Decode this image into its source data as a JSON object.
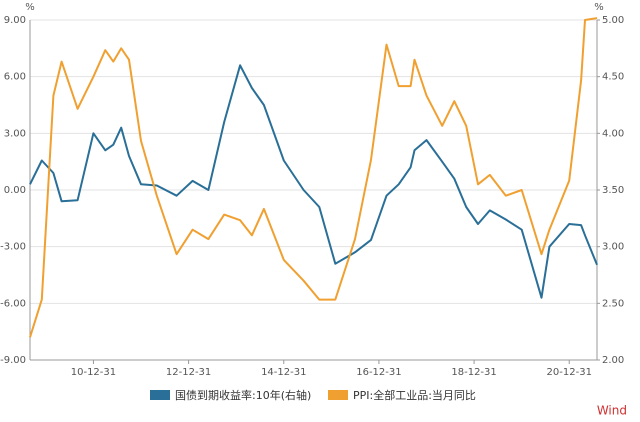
{
  "chart_data": {
    "type": "line",
    "ylabel": "%",
    "y2label": "%",
    "xlim": [
      "09-08-31",
      "21-07-31"
    ],
    "xticks": [
      "10-12-31",
      "12-12-31",
      "14-12-31",
      "16-12-31",
      "18-12-31",
      "20-12-31"
    ],
    "ylim": [
      -9,
      9
    ],
    "yticks": [
      {
        "value": -9,
        "label": "-9.00"
      },
      {
        "value": -6,
        "label": "-6.00"
      },
      {
        "value": -3,
        "label": "-3.00"
      },
      {
        "value": 0,
        "label": "0.00"
      },
      {
        "value": 3,
        "label": "3.00"
      },
      {
        "value": 6,
        "label": "6.00"
      },
      {
        "value": 9,
        "label": "9.00"
      }
    ],
    "y2lim": [
      2,
      5
    ],
    "y2ticks": [
      {
        "value": 2,
        "label": "2.00"
      },
      {
        "value": 2.5,
        "label": "2.50"
      },
      {
        "value": 3,
        "label": "3.00"
      },
      {
        "value": 3.5,
        "label": "3.50"
      },
      {
        "value": 4,
        "label": "4.00"
      },
      {
        "value": 4.5,
        "label": "4.50"
      },
      {
        "value": 5,
        "label": "5.00"
      }
    ],
    "grid": true,
    "x": [
      "09-08-31",
      "09-11-30",
      "10-02-28",
      "10-04-30",
      "10-08-31",
      "10-12-31",
      "11-03-31",
      "11-05-31",
      "11-07-31",
      "11-09-30",
      "11-12-31",
      "12-04-30",
      "12-09-30",
      "13-01-31",
      "13-05-31",
      "13-09-30",
      "14-01-31",
      "14-04-30",
      "14-07-31",
      "14-12-31",
      "15-05-31",
      "15-09-30",
      "16-01-31",
      "16-06-30",
      "16-10-31",
      "17-02-28",
      "17-05-31",
      "17-08-31",
      "17-09-30",
      "17-12-31",
      "18-04-30",
      "18-07-31",
      "18-10-31",
      "19-01-31",
      "19-04-30",
      "19-08-31",
      "19-12-31",
      "20-05-31",
      "20-07-31",
      "20-12-31",
      "21-03-31",
      "21-04-30",
      "21-07-31"
    ],
    "series": [
      {
        "name": "国债到期收益率:10年(右轴)",
        "color": "#2a6f97",
        "axis": "y2",
        "values": [
          3.55,
          3.76,
          3.65,
          3.4,
          3.41,
          4.0,
          3.85,
          3.9,
          4.05,
          3.8,
          3.55,
          3.54,
          3.45,
          3.58,
          3.5,
          4.1,
          4.6,
          4.4,
          4.25,
          3.76,
          3.5,
          3.35,
          2.85,
          2.95,
          3.06,
          3.45,
          3.55,
          3.7,
          3.85,
          3.94,
          3.75,
          3.6,
          3.35,
          3.2,
          3.32,
          3.24,
          3.15,
          2.55,
          3.0,
          3.2,
          3.19,
          3.1,
          2.84
        ]
      },
      {
        "name": "PPI:全部工业品:当月同比",
        "color": "#f0a030",
        "values": [
          -7.8,
          -5.8,
          5.0,
          6.8,
          4.3,
          6.0,
          7.4,
          6.8,
          7.5,
          6.9,
          2.6,
          -0.3,
          -3.4,
          -2.1,
          -2.6,
          -1.3,
          -1.6,
          -2.4,
          -1.0,
          -3.7,
          -4.8,
          -5.8,
          -5.8,
          -2.6,
          1.6,
          7.7,
          5.5,
          5.5,
          6.9,
          5.0,
          3.4,
          4.7,
          3.4,
          0.3,
          0.8,
          -0.3,
          0,
          -3.4,
          -2.1,
          0.5,
          5.8,
          9.0,
          9.1
        ]
      }
    ],
    "watermark": "Wind"
  }
}
